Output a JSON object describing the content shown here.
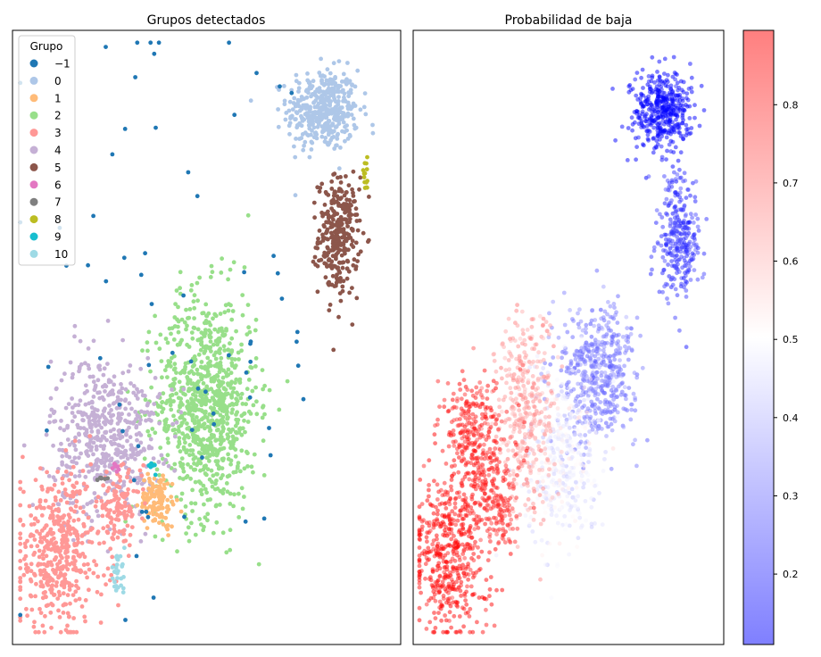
{
  "chart_data": [
    {
      "type": "scatter",
      "title": "Grupos detectados",
      "xlabel": "",
      "ylabel": "",
      "grid": false,
      "legend": {
        "title": "Grupo",
        "placement": "top-left",
        "entries": [
          {
            "label": "−1",
            "color": "#1f77b4"
          },
          {
            "label": "0",
            "color": "#aec7e8"
          },
          {
            "label": "1",
            "color": "#ffbb78"
          },
          {
            "label": "2",
            "color": "#98df8a"
          },
          {
            "label": "3",
            "color": "#ff9896"
          },
          {
            "label": "4",
            "color": "#c5b0d5"
          },
          {
            "label": "5",
            "color": "#8c564b"
          },
          {
            "label": "6",
            "color": "#e377c2"
          },
          {
            "label": "7",
            "color": "#7f7f7f"
          },
          {
            "label": "8",
            "color": "#bcbd22"
          },
          {
            "label": "9",
            "color": "#17becf"
          },
          {
            "label": "10",
            "color": "#9edae5"
          }
        ]
      },
      "xlim": [
        0,
        100
      ],
      "ylim": [
        0,
        100
      ],
      "clusters": [
        {
          "group": "0",
          "color": "#aec7e8",
          "cx": 80,
          "cy": 87,
          "sx": 4.6,
          "sy": 3.3,
          "n": 420
        },
        {
          "group": "5",
          "color": "#8c564b",
          "cx": 84,
          "cy": 66.5,
          "sx": 2.6,
          "sy": 4.8,
          "n": 300
        },
        {
          "group": "8",
          "color": "#bcbd22",
          "cx": 91,
          "cy": 76.5,
          "sx": 0.5,
          "sy": 1.3,
          "n": 14
        },
        {
          "group": "2",
          "color": "#98df8a",
          "cx": 50,
          "cy": 39,
          "sx": 6.5,
          "sy": 9,
          "n": 900
        },
        {
          "group": "4",
          "color": "#c5b0d5",
          "cx": 24,
          "cy": 34,
          "sx": 7,
          "sy": 6.5,
          "n": 520
        },
        {
          "group": "1",
          "color": "#ffbb78",
          "cx": 37.5,
          "cy": 23.5,
          "sx": 2.3,
          "sy": 2.2,
          "n": 120
        },
        {
          "group": "3",
          "color": "#ff9896",
          "cx": 12,
          "cy": 15,
          "sx": 6,
          "sy": 6.5,
          "n": 460
        },
        {
          "group": "3",
          "color": "#ff9896",
          "cx": 27.5,
          "cy": 22.5,
          "sx": 2.8,
          "sy": 2.6,
          "n": 110
        },
        {
          "group": "10",
          "color": "#9edae5",
          "cx": 27,
          "cy": 11.5,
          "sx": 1,
          "sy": 1.5,
          "n": 28
        },
        {
          "group": "6",
          "color": "#e377c2",
          "cx": 27,
          "cy": 29,
          "sx": 0.5,
          "sy": 0.3,
          "n": 8
        },
        {
          "group": "7",
          "color": "#7f7f7f",
          "cx": 23,
          "cy": 27,
          "sx": 1,
          "sy": 0.2,
          "n": 8
        },
        {
          "group": "9",
          "color": "#17becf",
          "cx": 36,
          "cy": 29,
          "sx": 0.5,
          "sy": 0.4,
          "n": 10
        },
        {
          "group": "−1",
          "color": "#1f77b4",
          "cx": 40,
          "cy": 50,
          "sx": 22,
          "sy": 25,
          "n": 70
        }
      ]
    },
    {
      "type": "scatter",
      "title": "Probabilidad de baja",
      "xlabel": "",
      "ylabel": "",
      "grid": false,
      "xlim": [
        0,
        100
      ],
      "ylim": [
        0,
        100
      ],
      "colorbar": {
        "placement": "right",
        "range": [
          0.11,
          0.895
        ],
        "ticks": [
          "0.2",
          "0.3",
          "0.4",
          "0.5",
          "0.6",
          "0.7",
          "0.8"
        ],
        "tick_values": [
          0.2,
          0.3,
          0.4,
          0.5,
          0.6,
          0.7,
          0.8
        ],
        "cmap": [
          "#0000ff",
          "#ffffff",
          "#ff0000"
        ],
        "cmap_low": "#0000ff",
        "cmap_mid": "#ffffff",
        "cmap_high": "#ff0000",
        "alpha": 0.5
      },
      "clusters": [
        {
          "cx": 80,
          "cy": 87,
          "sx": 4.6,
          "sy": 3.3,
          "n": 420,
          "p": 0.1
        },
        {
          "cx": 85,
          "cy": 66.5,
          "sx": 3.2,
          "sy": 5,
          "n": 300,
          "p": 0.2
        },
        {
          "cx": 60,
          "cy": 44,
          "sx": 6,
          "sy": 5.5,
          "n": 500,
          "p": 0.3
        },
        {
          "cx": 48,
          "cy": 30,
          "sx": 6,
          "sy": 7,
          "n": 420,
          "p": 0.48
        },
        {
          "cx": 36,
          "cy": 38,
          "sx": 5,
          "sy": 8,
          "n": 380,
          "p": 0.65
        },
        {
          "cx": 20,
          "cy": 32,
          "sx": 5,
          "sy": 6,
          "n": 380,
          "p": 0.85
        },
        {
          "cx": 12,
          "cy": 14,
          "sx": 6,
          "sy": 6.5,
          "n": 460,
          "p": 0.88
        },
        {
          "cx": 28,
          "cy": 22,
          "sx": 3,
          "sy": 3,
          "n": 110,
          "p": 0.82
        }
      ]
    }
  ]
}
